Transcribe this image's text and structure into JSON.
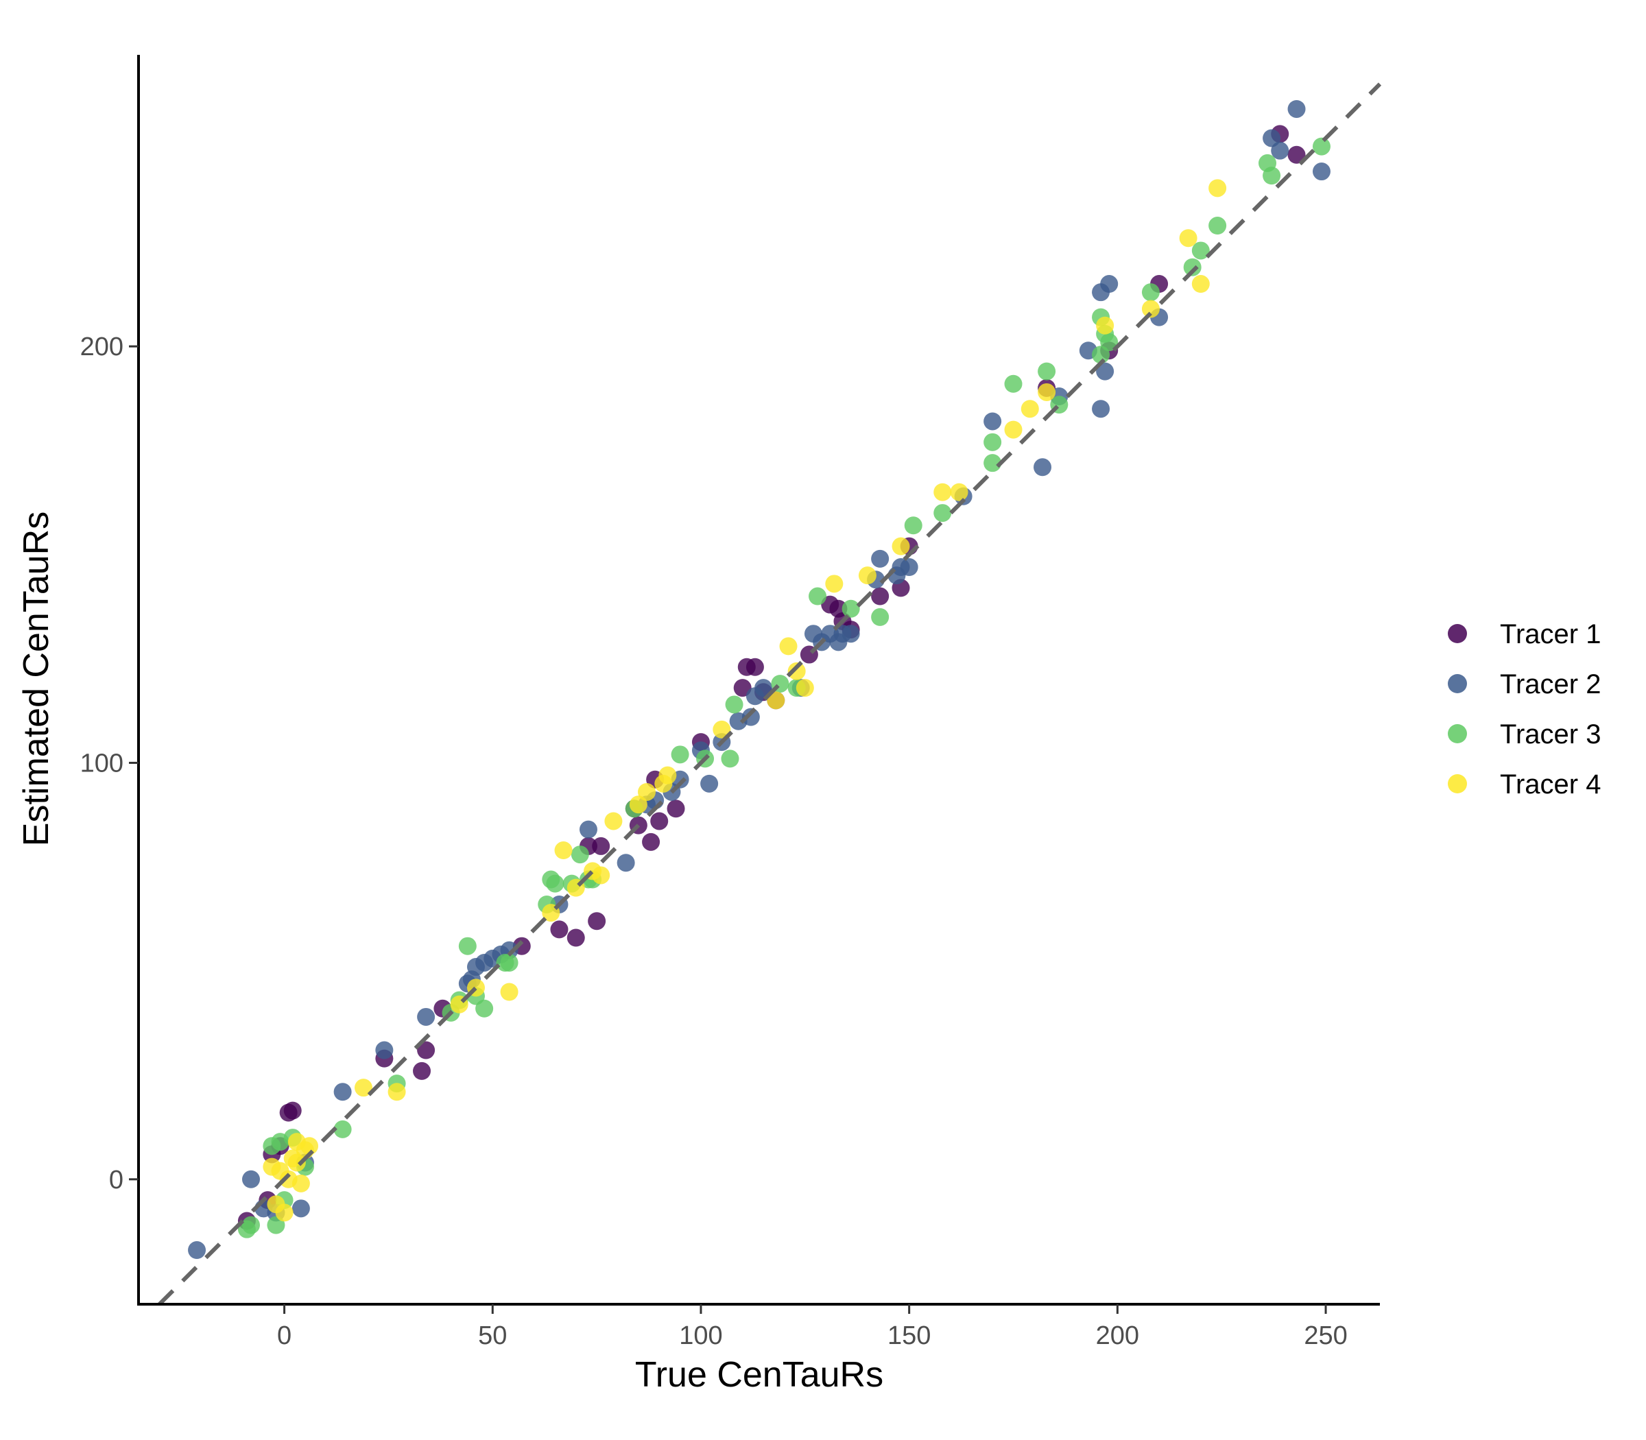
{
  "chart_data": {
    "type": "scatter",
    "title": "",
    "xlabel": "True CenTauRs",
    "ylabel": "Estimated CenTauRs",
    "xlim": [
      -35,
      263
    ],
    "ylim": [
      -30,
      270
    ],
    "x_ticks": [
      0,
      50,
      100,
      150,
      200,
      250
    ],
    "y_ticks": [
      0,
      100,
      200
    ],
    "grid": false,
    "reference_line": "y = x (dashed)",
    "legend": {
      "position": "right"
    },
    "series": [
      {
        "name": "Tracer 1",
        "color": "#440154",
        "points": [
          [
            1,
            16
          ],
          [
            2,
            16.5
          ],
          [
            -3,
            6
          ],
          [
            -1,
            8
          ],
          [
            -4,
            -5
          ],
          [
            -9,
            -10
          ],
          [
            24,
            29
          ],
          [
            33,
            26
          ],
          [
            34,
            31
          ],
          [
            38,
            41
          ],
          [
            57,
            56
          ],
          [
            66,
            60
          ],
          [
            70,
            58
          ],
          [
            73,
            80
          ],
          [
            75,
            62
          ],
          [
            76,
            80
          ],
          [
            84,
            89
          ],
          [
            85,
            85
          ],
          [
            88,
            81
          ],
          [
            89,
            96
          ],
          [
            90,
            86
          ],
          [
            94,
            89
          ],
          [
            100,
            105
          ],
          [
            110,
            118
          ],
          [
            111,
            123
          ],
          [
            113,
            123
          ],
          [
            115,
            117
          ],
          [
            118,
            115
          ],
          [
            126,
            126
          ],
          [
            131,
            138
          ],
          [
            133,
            137
          ],
          [
            134,
            134
          ],
          [
            136,
            132
          ],
          [
            143,
            140
          ],
          [
            148,
            142
          ],
          [
            150,
            152
          ],
          [
            183,
            190
          ],
          [
            198,
            199
          ],
          [
            210,
            215
          ],
          [
            239,
            251
          ],
          [
            243,
            246
          ]
        ]
      },
      {
        "name": "Tracer 2",
        "color": "#3b5a8c",
        "points": [
          [
            -21,
            -17
          ],
          [
            -8,
            0
          ],
          [
            -5,
            -7
          ],
          [
            -2,
            -8
          ],
          [
            4,
            -7
          ],
          [
            5,
            4
          ],
          [
            14,
            21
          ],
          [
            24,
            31
          ],
          [
            34,
            39
          ],
          [
            44,
            47
          ],
          [
            45,
            48
          ],
          [
            46,
            51
          ],
          [
            48,
            52
          ],
          [
            50,
            53
          ],
          [
            52,
            54
          ],
          [
            54,
            55
          ],
          [
            66,
            66
          ],
          [
            73,
            84
          ],
          [
            82,
            76
          ],
          [
            87,
            90
          ],
          [
            89,
            91
          ],
          [
            93,
            93
          ],
          [
            95,
            96
          ],
          [
            100,
            103
          ],
          [
            102,
            95
          ],
          [
            105,
            105
          ],
          [
            109,
            110
          ],
          [
            112,
            111
          ],
          [
            113,
            116
          ],
          [
            115,
            118
          ],
          [
            124,
            118
          ],
          [
            127,
            131
          ],
          [
            129,
            129
          ],
          [
            131,
            131
          ],
          [
            133,
            129
          ],
          [
            134,
            131
          ],
          [
            136,
            131
          ],
          [
            142,
            144
          ],
          [
            143,
            149
          ],
          [
            147,
            145
          ],
          [
            148,
            147
          ],
          [
            150,
            147
          ],
          [
            163,
            164
          ],
          [
            170,
            182
          ],
          [
            182,
            171
          ],
          [
            186,
            188
          ],
          [
            193,
            199
          ],
          [
            196,
            213
          ],
          [
            196,
            185
          ],
          [
            197,
            194
          ],
          [
            198,
            215
          ],
          [
            210,
            207
          ],
          [
            237,
            250
          ],
          [
            239,
            247
          ],
          [
            243,
            257
          ],
          [
            249,
            242
          ]
        ]
      },
      {
        "name": "Tracer 3",
        "color": "#5ec962",
        "points": [
          [
            -9,
            -12
          ],
          [
            -8,
            -11
          ],
          [
            -3,
            8
          ],
          [
            -2,
            -11
          ],
          [
            -1,
            9
          ],
          [
            0,
            -5
          ],
          [
            2,
            10
          ],
          [
            5,
            3
          ],
          [
            14,
            12
          ],
          [
            27,
            23
          ],
          [
            40,
            40
          ],
          [
            42,
            43
          ],
          [
            44,
            56
          ],
          [
            46,
            44
          ],
          [
            48,
            41
          ],
          [
            53,
            52
          ],
          [
            54,
            52
          ],
          [
            63,
            66
          ],
          [
            64,
            72
          ],
          [
            65,
            71
          ],
          [
            69,
            71
          ],
          [
            71,
            78
          ],
          [
            73,
            72
          ],
          [
            74,
            72
          ],
          [
            84,
            89
          ],
          [
            95,
            102
          ],
          [
            101,
            101
          ],
          [
            107,
            101
          ],
          [
            108,
            114
          ],
          [
            119,
            119
          ],
          [
            123,
            118
          ],
          [
            128,
            140
          ],
          [
            136,
            137
          ],
          [
            143,
            135
          ],
          [
            151,
            157
          ],
          [
            158,
            160
          ],
          [
            170,
            172
          ],
          [
            170,
            177
          ],
          [
            175,
            191
          ],
          [
            183,
            194
          ],
          [
            186,
            186
          ],
          [
            196,
            198
          ],
          [
            197,
            203
          ],
          [
            196,
            207
          ],
          [
            198,
            201
          ],
          [
            208,
            213
          ],
          [
            218,
            219
          ],
          [
            220,
            223
          ],
          [
            224,
            229
          ],
          [
            236,
            244
          ],
          [
            237,
            241
          ],
          [
            249,
            248
          ]
        ]
      },
      {
        "name": "Tracer 4",
        "color": "#fde725",
        "points": [
          [
            -3,
            3
          ],
          [
            -1,
            2
          ],
          [
            -2,
            -6
          ],
          [
            0,
            -8
          ],
          [
            1,
            0
          ],
          [
            2,
            5
          ],
          [
            3,
            4
          ],
          [
            3,
            9
          ],
          [
            4,
            -1
          ],
          [
            5,
            7
          ],
          [
            6,
            8
          ],
          [
            19,
            22
          ],
          [
            27,
            21
          ],
          [
            42,
            42
          ],
          [
            46,
            46
          ],
          [
            54,
            45
          ],
          [
            64,
            64
          ],
          [
            67,
            79
          ],
          [
            70,
            70
          ],
          [
            74,
            74
          ],
          [
            76,
            73
          ],
          [
            79,
            86
          ],
          [
            85,
            90
          ],
          [
            87,
            93
          ],
          [
            91,
            95
          ],
          [
            92,
            97
          ],
          [
            105,
            108
          ],
          [
            118,
            115
          ],
          [
            121,
            128
          ],
          [
            123,
            122
          ],
          [
            125,
            118
          ],
          [
            132,
            143
          ],
          [
            140,
            145
          ],
          [
            148,
            152
          ],
          [
            158,
            165
          ],
          [
            162,
            165
          ],
          [
            175,
            180
          ],
          [
            179,
            185
          ],
          [
            183,
            189
          ],
          [
            197,
            205
          ],
          [
            208,
            209
          ],
          [
            217,
            226
          ],
          [
            220,
            215
          ],
          [
            224,
            238
          ]
        ]
      }
    ]
  }
}
